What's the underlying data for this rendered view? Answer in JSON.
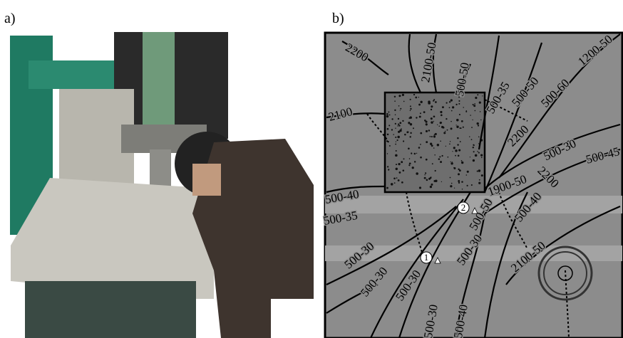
{
  "panels": {
    "a": {
      "label": "a)"
    },
    "b": {
      "label": "b)"
    }
  },
  "crack_labels": [
    "2200",
    "2100-50",
    "500-50",
    "1200-50",
    "2100",
    "500-35",
    "500-50",
    "500-60",
    "2200",
    "500-30",
    "500-45",
    "500-40",
    "1900-50",
    "2200",
    "500-40",
    "500-50",
    "500-35",
    "500-30",
    "500-30",
    "500-30",
    "500-30",
    "2100-50",
    "500-30",
    "500-40"
  ],
  "markers": [
    "1",
    "2"
  ]
}
